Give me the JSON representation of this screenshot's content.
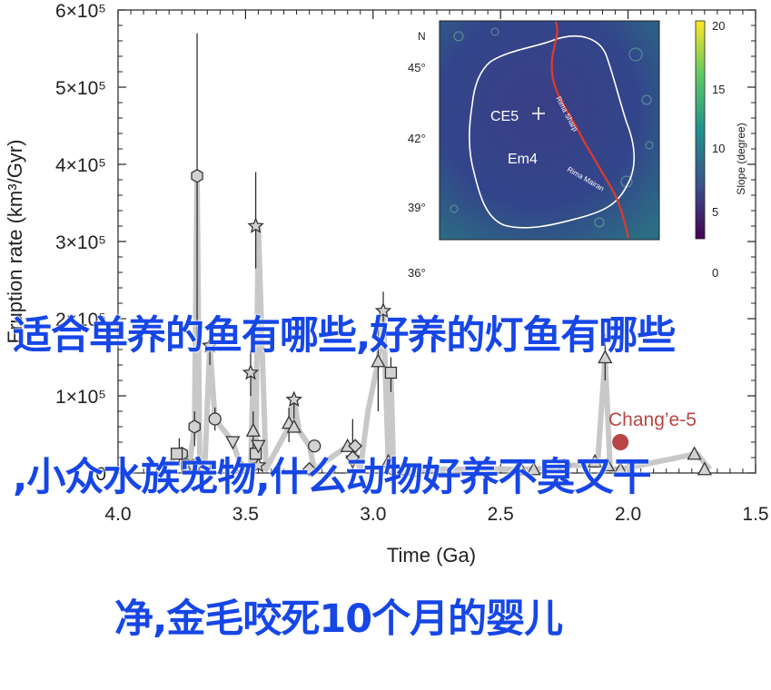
{
  "chart_data": {
    "type": "scatter",
    "xlabel": "Time (Ga)",
    "ylabel": "Eruption rate (km³/Gyr)",
    "xlim": [
      4.0,
      1.5
    ],
    "ylim": [
      0,
      600000
    ],
    "x_ticks": [
      "4.0",
      "3.5",
      "3.0",
      "2.5",
      "2.0",
      "1.5"
    ],
    "y_ticks": [
      "0",
      "1×10⁵",
      "2×10⁵",
      "3×10⁵",
      "4×10⁵",
      "5×10⁵",
      "6×10⁵"
    ],
    "line": {
      "color": "#c8c8c8",
      "x": [
        3.8,
        3.76,
        3.75,
        3.72,
        3.7,
        3.69,
        3.68,
        3.66,
        3.64,
        3.62,
        3.55,
        3.52,
        3.5,
        3.48,
        3.47,
        3.46,
        3.45,
        3.42,
        3.33,
        3.31,
        3.29,
        3.25,
        3.23,
        3.1,
        3.08,
        3.05,
        3.02,
        2.98,
        2.96,
        2.94,
        2.93,
        2.92,
        2.91,
        2.88,
        2.82,
        2.6,
        2.42,
        2.37,
        2.25,
        2.12,
        2.09,
        2.07,
        2.03,
        1.73,
        1.68
      ],
      "y": [
        10000,
        30000,
        25000,
        10000,
        60000,
        385000,
        10000,
        8000,
        165000,
        70000,
        40000,
        10000,
        5000,
        5000,
        130000,
        10000,
        320000,
        5000,
        60000,
        95000,
        55000,
        35000,
        5000,
        35000,
        35000,
        5000,
        80000,
        145000,
        210000,
        15000,
        130000,
        5000,
        5000,
        5000,
        5000,
        5000,
        5000,
        5000,
        10000,
        10000,
        150000,
        5000,
        5000,
        25000,
        5000
      ]
    },
    "series": [
      {
        "marker": "hexagon",
        "points": [
          [
            3.69,
            385000
          ],
          [
            3.7,
            60000
          ],
          [
            3.75,
            25000
          ],
          [
            3.73,
            10000
          ],
          [
            3.66,
            8000
          ]
        ]
      },
      {
        "marker": "star",
        "points": [
          [
            3.46,
            320000
          ],
          [
            3.64,
            165000
          ],
          [
            3.48,
            130000
          ],
          [
            3.31,
            95000
          ],
          [
            2.96,
            210000
          ],
          [
            3.45,
            10000
          ]
        ]
      },
      {
        "marker": "triangle-up",
        "points": [
          [
            2.98,
            145000
          ],
          [
            2.09,
            150000
          ],
          [
            3.47,
            55000
          ],
          [
            3.33,
            65000
          ],
          [
            3.31,
            60000
          ],
          [
            3.1,
            35000
          ],
          [
            2.94,
            15000
          ],
          [
            2.88,
            5000
          ],
          [
            2.42,
            5000
          ],
          [
            2.37,
            5000
          ],
          [
            2.13,
            15000
          ],
          [
            2.08,
            10000
          ],
          [
            2.03,
            5000
          ],
          [
            1.74,
            25000
          ],
          [
            1.7,
            5000
          ]
        ]
      },
      {
        "marker": "square",
        "points": [
          [
            2.93,
            130000
          ],
          [
            3.77,
            25000
          ],
          [
            3.46,
            25000
          ]
        ]
      },
      {
        "marker": "triangle-down",
        "points": [
          [
            3.55,
            40000
          ],
          [
            3.45,
            35000
          ],
          [
            3.08,
            15000
          ]
        ]
      },
      {
        "marker": "circle",
        "points": [
          [
            3.62,
            70000
          ],
          [
            3.23,
            35000
          ],
          [
            3.7,
            10000
          ],
          [
            2.92,
            5000
          ],
          [
            2.84,
            3000
          ],
          [
            2.25,
            10000
          ]
        ]
      },
      {
        "marker": "diamond",
        "points": [
          [
            3.52,
            8000
          ],
          [
            3.25,
            5000
          ],
          [
            3.07,
            35000
          ],
          [
            3.08,
            20000
          ]
        ]
      },
      {
        "marker": "circle-red",
        "points": [
          [
            2.03,
            40000
          ]
        ]
      }
    ],
    "error_bars": [
      [
        3.69,
        165000,
        570000
      ],
      [
        3.46,
        265000,
        390000
      ],
      [
        3.64,
        140000,
        185000
      ],
      [
        3.48,
        100000,
        160000
      ],
      [
        3.31,
        70000,
        105000
      ],
      [
        2.96,
        185000,
        235000
      ],
      [
        2.98,
        80000,
        200000
      ],
      [
        2.09,
        120000,
        180000
      ],
      [
        2.93,
        105000,
        150000
      ],
      [
        3.7,
        35000,
        80000
      ],
      [
        3.33,
        40000,
        85000
      ],
      [
        3.08,
        0,
        70000
      ],
      [
        3.62,
        55000,
        85000
      ],
      [
        3.76,
        10000,
        45000
      ],
      [
        3.47,
        30000,
        80000
      ]
    ],
    "annotation": {
      "text": "Chang’e-5",
      "x": 2.03,
      "y": 40000,
      "color": "#b84545"
    },
    "inset": {
      "north_label": "N",
      "lat_ticks": [
        "45°",
        "42°",
        "39°",
        "36°"
      ],
      "labels": [
        "CE5",
        "Em4",
        "Rima Sharp",
        "Rima Mairan"
      ],
      "colorbar_title": "Slope (degree)",
      "colorbar_ticks": [
        "20",
        "15",
        "10",
        "5",
        "0"
      ]
    }
  },
  "overlay_text": {
    "line1": "适合单养的鱼有哪些,好养的灯鱼有哪些",
    "line2": ",小众水族宠物,什么动物好养不臭又干",
    "line3": "净,金毛咬死10个月的婴儿"
  }
}
